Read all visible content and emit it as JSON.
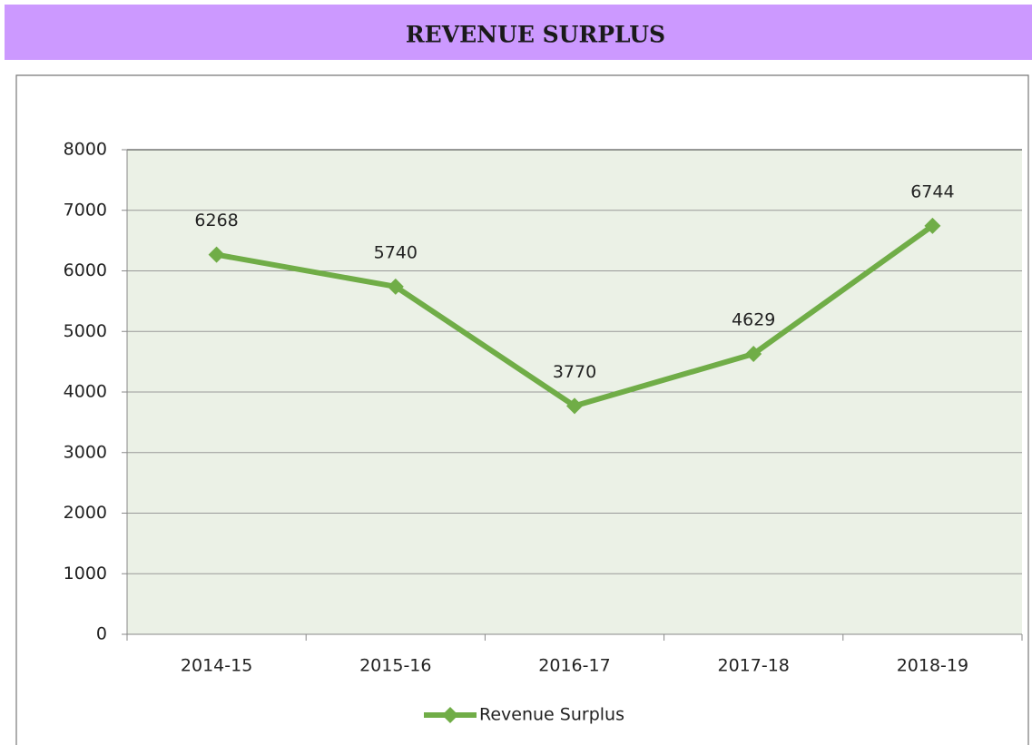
{
  "chart_data": {
    "type": "line",
    "title": "REVENUE SURPLUS",
    "categories": [
      "2014-15",
      "2015-16",
      "2016-17",
      "2017-18",
      "2018-19"
    ],
    "series": [
      {
        "name": "Revenue Surplus",
        "color": "#70ad47",
        "values": [
          6268,
          5740,
          3770,
          4629,
          6744
        ]
      }
    ],
    "ylim": [
      0,
      8000
    ],
    "yticks": [
      0,
      1000,
      2000,
      3000,
      4000,
      5000,
      6000,
      7000,
      8000
    ],
    "grid": true,
    "legend": "bottom"
  }
}
